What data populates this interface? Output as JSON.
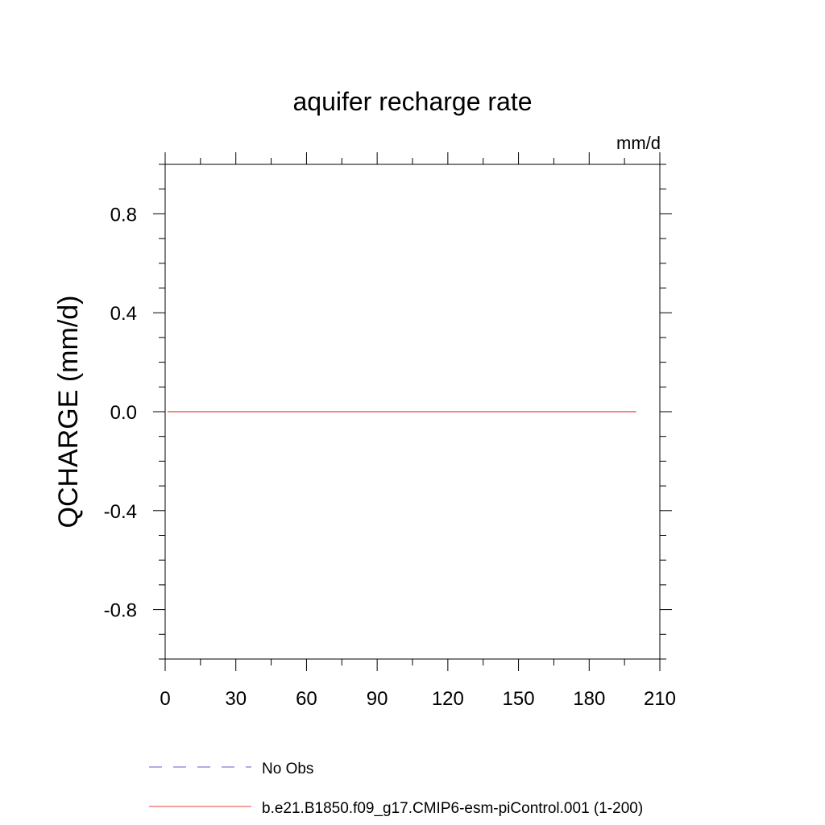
{
  "chart_data": {
    "type": "line",
    "title": "aquifer recharge rate",
    "units": "mm/d",
    "ylabel": "QCHARGE  (mm/d)",
    "xlabel": "",
    "xlim": [
      0,
      210
    ],
    "ylim": [
      -1.0,
      1.0
    ],
    "x_ticks": [
      0,
      30,
      60,
      90,
      120,
      150,
      180,
      210
    ],
    "x_tick_labels": [
      "0",
      "30",
      "60",
      "90",
      "120",
      "150",
      "180",
      "210"
    ],
    "y_ticks": [
      -0.8,
      -0.4,
      0.0,
      0.4,
      0.8
    ],
    "y_tick_labels": [
      "-0.8",
      "-0.4",
      "0.0",
      "0.4",
      "0.8"
    ],
    "grid": false,
    "legend_position": "bottom",
    "series": [
      {
        "name": "No Obs",
        "style": "dashed",
        "color": "#6a5acd",
        "x": [],
        "y": []
      },
      {
        "name": "b.e21.B1850.f09_g17.CMIP6-esm-piControl.001 (1-200)",
        "style": "solid",
        "color": "#e8403a",
        "x": [
          1,
          200
        ],
        "y": [
          0.0,
          0.0
        ]
      }
    ]
  }
}
